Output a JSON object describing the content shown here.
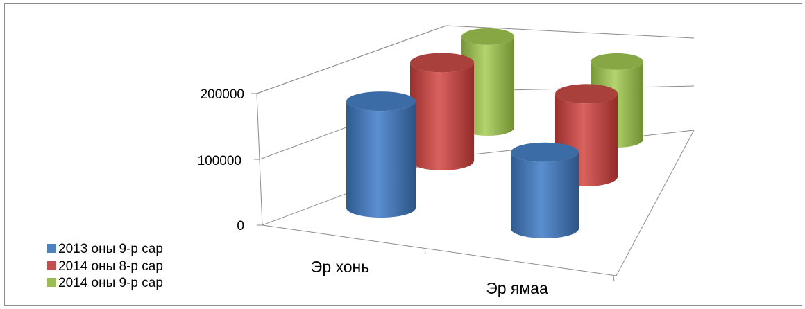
{
  "chart_data": {
    "type": "bar",
    "style": "3d-cylinder",
    "categories": [
      "Эр хонь",
      "Эр ямаа"
    ],
    "series": [
      {
        "name": "2013 оны 9-р сар",
        "color": "#4f81bd",
        "values": [
          162000,
          116000
        ]
      },
      {
        "name": "2014 оны 8-р сар",
        "color": "#c0504d",
        "values": [
          149000,
          126000
        ]
      },
      {
        "name": "2014 оны 9-р сар",
        "color": "#9bbb59",
        "values": [
          138000,
          118000
        ]
      }
    ],
    "yticks": [
      "0",
      "100000",
      "200000"
    ],
    "ylim": [
      0,
      250000
    ],
    "grid": true,
    "legend_position": "bottom-left"
  }
}
